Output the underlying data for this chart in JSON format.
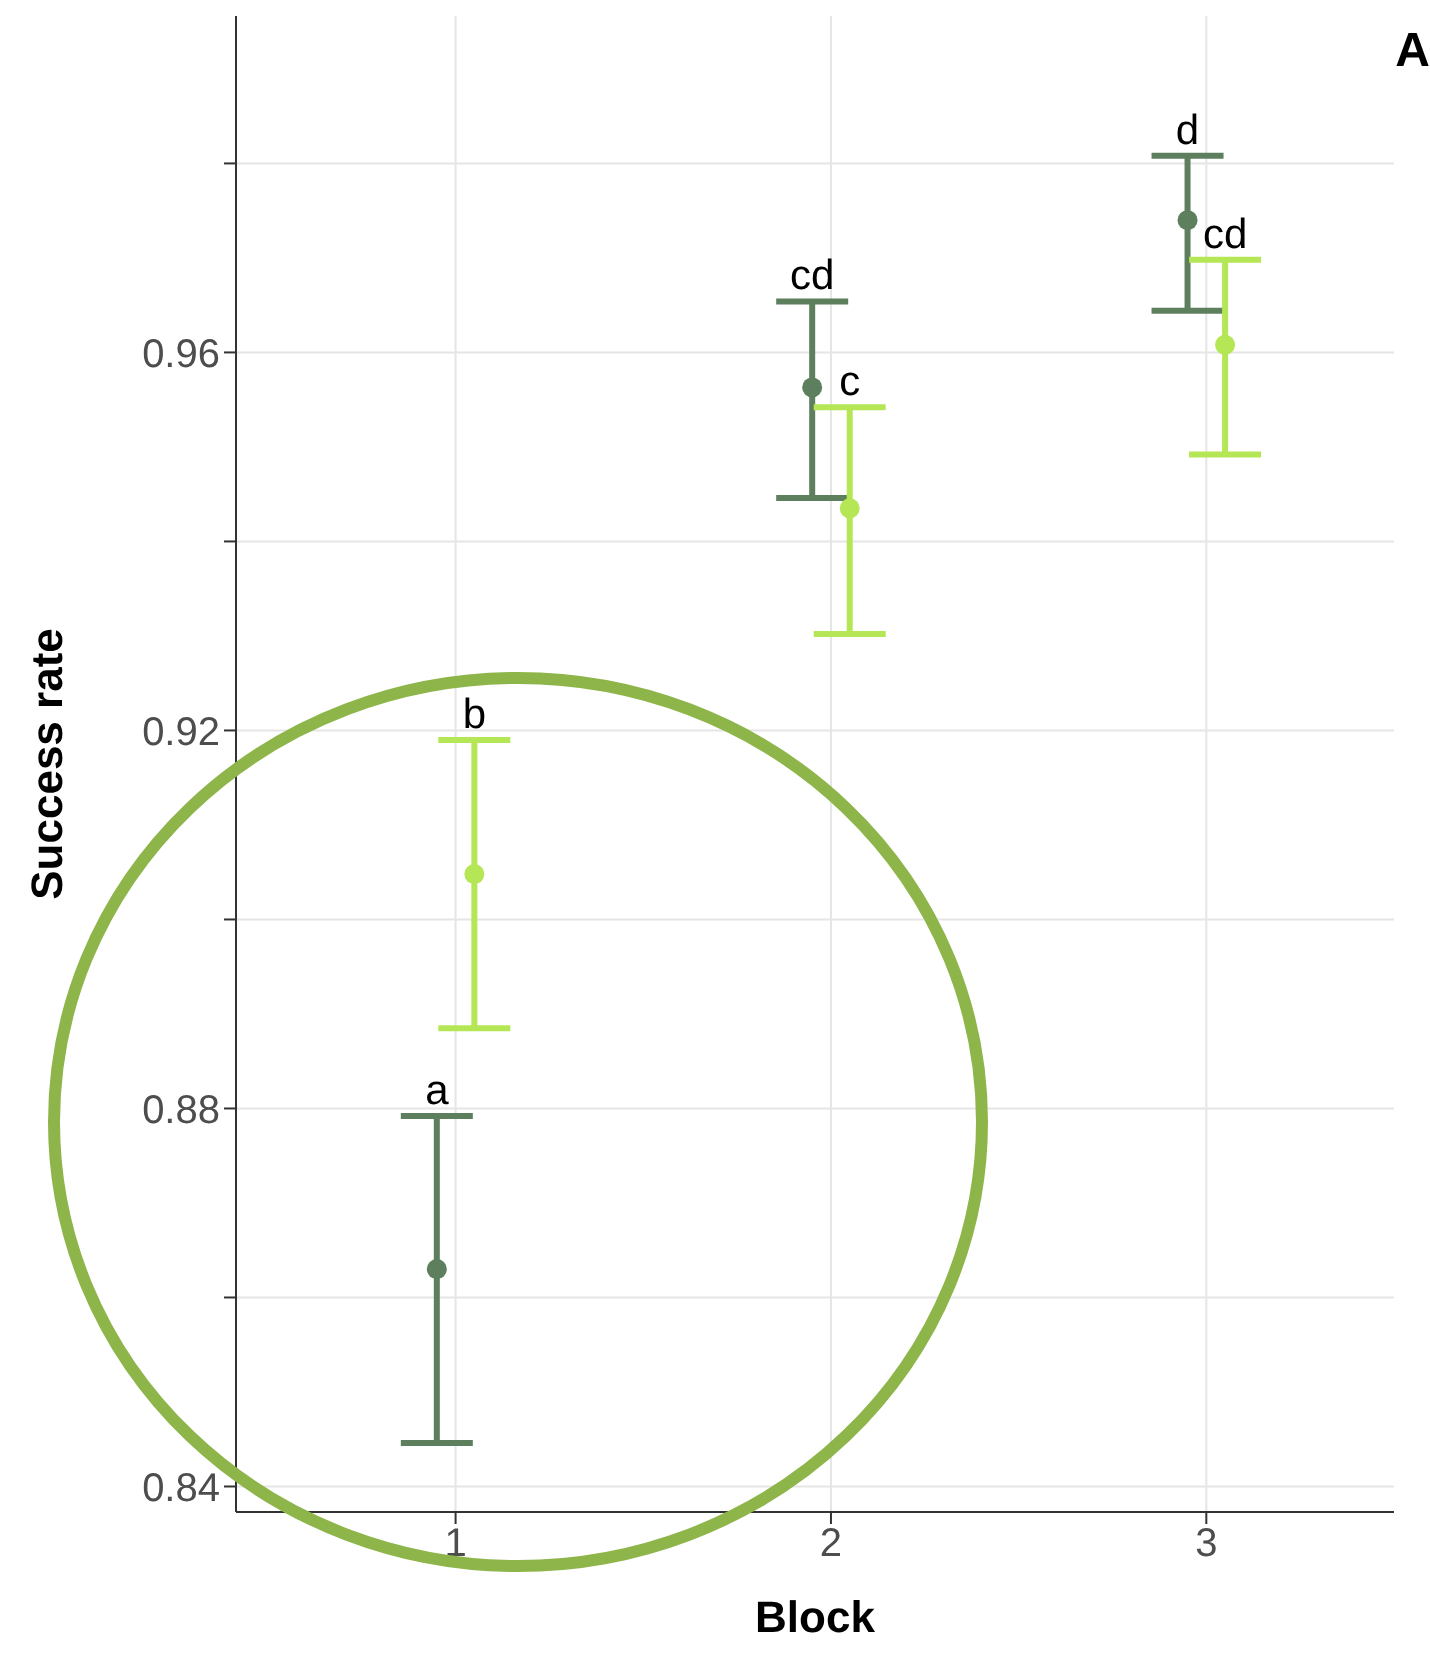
{
  "chart_data": {
    "type": "scatter",
    "xlabel": "Block",
    "ylabel": "Success rate",
    "annotations": [
      "A",
      {
        "text": "a",
        "x": 0.95,
        "y": 0.8792
      },
      {
        "text": "b",
        "x": 1.05,
        "y": 0.919
      },
      {
        "text": "cd",
        "x": 1.95,
        "y": 0.9654
      },
      {
        "text": "c",
        "x": 2.05,
        "y": 0.9542
      },
      {
        "text": "d",
        "x": 2.95,
        "y": 0.9808
      },
      {
        "text": "cd",
        "x": 3.05,
        "y": 0.9698
      }
    ],
    "series": [
      {
        "color": "#5e7f5e",
        "x": [
          0.95,
          1.95,
          2.95
        ],
        "values": [
          0.863,
          0.9563,
          0.974
        ],
        "errors": [
          [
            0.8446,
            0.8792
          ],
          [
            0.9446,
            0.9654
          ],
          [
            0.9644,
            0.9808
          ]
        ]
      },
      {
        "color": "#b5e655",
        "x": [
          1.05,
          2.05,
          3.05
        ],
        "values": [
          0.9048,
          0.9435,
          0.9608
        ],
        "errors": [
          [
            0.8885,
            0.919
          ],
          [
            0.9302,
            0.9542
          ],
          [
            0.9492,
            0.9698
          ]
        ]
      }
    ],
    "xlim": [
      0.415,
      3.5
    ],
    "xticks": [
      1,
      2,
      3
    ],
    "ylim": [
      0.8373,
      0.9956
    ],
    "yticks": [
      0.84,
      {
        "value": 0.86,
        "label": null
      },
      0.88,
      {
        "value": 0.9,
        "label": null
      },
      0.92,
      {
        "value": 0.94,
        "label": null
      },
      0.96,
      {
        "value": 0.98,
        "label": null
      }
    ],
    "grid": true,
    "marker": "circle"
  }
}
